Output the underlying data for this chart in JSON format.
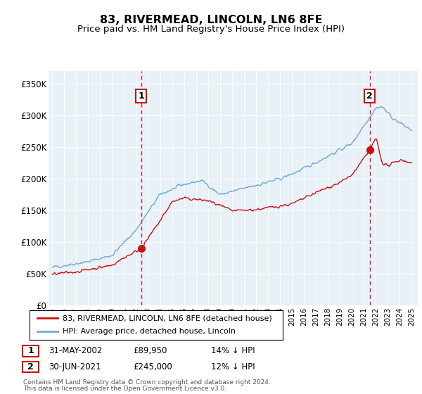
{
  "title": "83, RIVERMEAD, LINCOLN, LN6 8FE",
  "subtitle": "Price paid vs. HM Land Registry's House Price Index (HPI)",
  "ylim": [
    0,
    370000
  ],
  "yticks": [
    0,
    50000,
    100000,
    150000,
    200000,
    250000,
    300000,
    350000
  ],
  "ytick_labels": [
    "£0",
    "£50K",
    "£100K",
    "£150K",
    "£200K",
    "£250K",
    "£300K",
    "£350K"
  ],
  "xlim_start": 1994.7,
  "xlim_end": 2025.5,
  "plot_bg_color": "#e8f0f8",
  "fig_bg_color": "#ffffff",
  "hpi_color": "#6fa8d4",
  "price_color": "#cc1111",
  "transaction1_x": 2002.42,
  "transaction1_y": 89950,
  "transaction2_x": 2021.5,
  "transaction2_y": 245000,
  "legend_line1": "83, RIVERMEAD, LINCOLN, LN6 8FE (detached house)",
  "legend_line2": "HPI: Average price, detached house, Lincoln",
  "footer1": "Contains HM Land Registry data © Crown copyright and database right 2024.",
  "footer2": "This data is licensed under the Open Government Licence v3.0.",
  "table_row1": [
    "1",
    "31-MAY-2002",
    "£89,950",
    "14% ↓ HPI"
  ],
  "table_row2": [
    "2",
    "30-JUN-2021",
    "£245,000",
    "12% ↓ HPI"
  ]
}
